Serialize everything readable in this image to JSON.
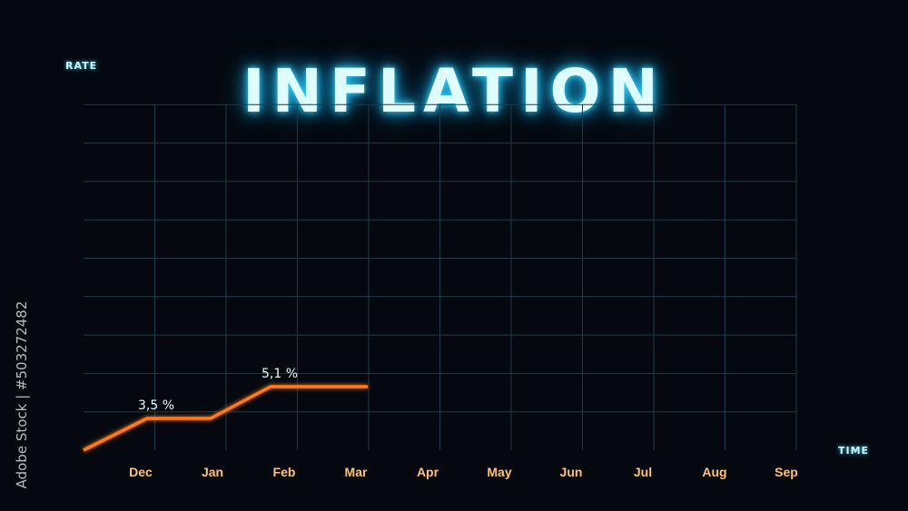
{
  "chart_data": {
    "type": "line",
    "title": "INFLATION",
    "xlabel": "TIME",
    "ylabel": "RATE",
    "categories": [
      "Dec",
      "Jan",
      "Feb",
      "Mar",
      "Apr",
      "May",
      "Jun",
      "Jul",
      "Aug",
      "Sep"
    ],
    "series": [
      {
        "values": [
          3.5,
          3.5,
          5.1,
          5.1,
          null,
          null,
          null,
          null,
          null,
          null
        ]
      }
    ],
    "data_labels": [
      {
        "category": "Dec",
        "text": "3,5 %"
      },
      {
        "category": "Feb",
        "text": "5,1 %"
      }
    ],
    "grid": true,
    "colors": {
      "background": "#05090f",
      "axis": "#3bb6cf",
      "grid": "#1f3a48",
      "line": "#ff7a1a",
      "tick_labels": "#ffc27a",
      "title_glow": "#3fd8ff"
    }
  },
  "watermark": {
    "text": "Adobe Stock",
    "side_text": "Adobe Stock | #503272482"
  }
}
